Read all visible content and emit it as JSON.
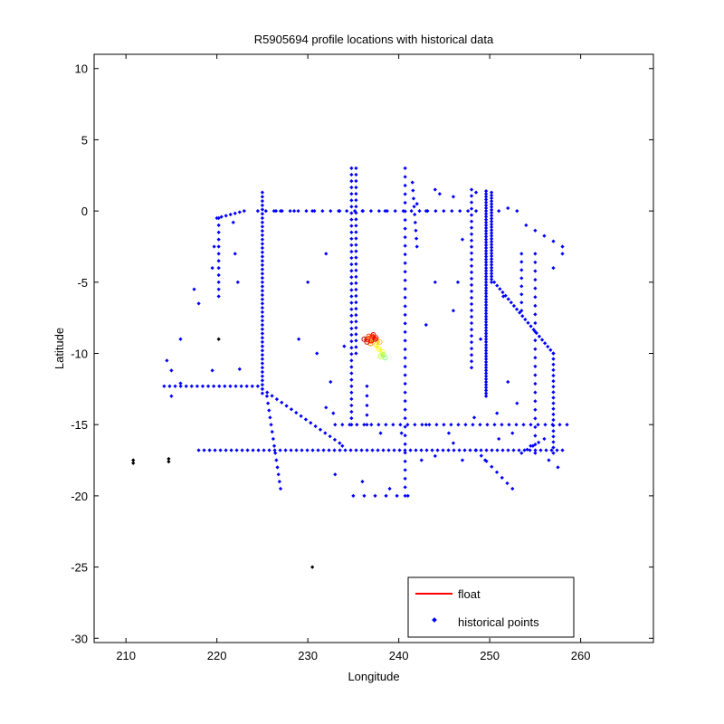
{
  "chart_data": {
    "type": "scatter",
    "title": "R5905694 profile locations with historical data",
    "xlabel": "Longitude",
    "ylabel": "Latitude",
    "xlim": [
      206.5,
      268
    ],
    "ylim": [
      -30.3,
      11
    ],
    "xticks": [
      210,
      220,
      230,
      240,
      250,
      260
    ],
    "yticks": [
      10,
      5,
      0,
      -5,
      -10,
      -15,
      -20,
      -25,
      -30
    ],
    "grid": false,
    "legend": {
      "placement": "bottom-right",
      "entries": [
        {
          "label": "float",
          "marker": "line",
          "color": "#ff0000"
        },
        {
          "label": "historical points",
          "marker": "dot",
          "color": "#0000ff"
        }
      ]
    },
    "series": [
      {
        "name": "historical points",
        "color": "#0000ff",
        "segments": [
          {
            "x1": 218,
            "y1": -16.8,
            "x2": 258,
            "y2": -16.8,
            "step": 0.6
          },
          {
            "x1": 233,
            "y1": -15,
            "x2": 258.5,
            "y2": -15,
            "step": 0.8
          },
          {
            "x1": 224.5,
            "y1": 0,
            "x2": 248.5,
            "y2": 0,
            "step": 0.9
          },
          {
            "x1": 225,
            "y1": 1.3,
            "x2": 225,
            "y2": -12.8,
            "step": 0.3
          },
          {
            "x1": 234.8,
            "y1": 3,
            "x2": 234.8,
            "y2": -15,
            "step": 0.45
          },
          {
            "x1": 235.3,
            "y1": 3,
            "x2": 235.3,
            "y2": -10,
            "step": 0.45
          },
          {
            "x1": 240.7,
            "y1": 3,
            "x2": 240.7,
            "y2": -20,
            "step": 0.6
          },
          {
            "x1": 248,
            "y1": 1.5,
            "x2": 248,
            "y2": -11,
            "step": 0.45
          },
          {
            "x1": 249.6,
            "y1": 1.4,
            "x2": 249.6,
            "y2": -13,
            "step": 0.2
          },
          {
            "x1": 250.2,
            "y1": 1.3,
            "x2": 250.2,
            "y2": -5,
            "step": 0.2
          },
          {
            "x1": 257,
            "y1": -10,
            "x2": 257,
            "y2": -17,
            "step": 0.4
          },
          {
            "x1": 255,
            "y1": -3,
            "x2": 255,
            "y2": -17,
            "step": 0.6
          },
          {
            "x1": 250.5,
            "y1": -5,
            "x2": 257,
            "y2": -10,
            "step": 0.4
          },
          {
            "x1": 220.2,
            "y1": -0.5,
            "x2": 220.2,
            "y2": -6,
            "step": 0.5
          },
          {
            "x1": 220,
            "y1": -0.5,
            "x2": 223,
            "y2": 0,
            "step": 0.5
          },
          {
            "x1": 214.2,
            "y1": -12.3,
            "x2": 224.5,
            "y2": -12.3,
            "step": 0.6
          },
          {
            "x1": 225,
            "y1": -12.5,
            "x2": 233.5,
            "y2": -16.3,
            "step": 0.6
          },
          {
            "x1": 225.5,
            "y1": -13,
            "x2": 227,
            "y2": -19.5,
            "step": 0.5
          },
          {
            "x1": 241,
            "y1": -20,
            "x2": 235,
            "y2": -20,
            "step": 1.2
          },
          {
            "x1": 253.5,
            "y1": -3,
            "x2": 253.5,
            "y2": -7,
            "step": 0.6
          },
          {
            "x1": 258,
            "y1": -2.5,
            "x2": 254,
            "y2": -1,
            "step": 1.0
          },
          {
            "x1": 241.5,
            "y1": 2,
            "x2": 242,
            "y2": -2.5,
            "step": 0.6
          },
          {
            "x1": 248.5,
            "y1": -16.8,
            "x2": 252.5,
            "y2": -19.5,
            "step": 0.7
          },
          {
            "x1": 253.5,
            "y1": -17,
            "x2": 256,
            "y2": -16,
            "step": 0.6
          },
          {
            "x1": 236.5,
            "y1": -12.3,
            "x2": 236.5,
            "y2": -15,
            "step": 0.6
          }
        ],
        "points": [
          [
            226.5,
            0
          ],
          [
            227,
            0
          ],
          [
            228.5,
            0
          ],
          [
            230.5,
            0
          ],
          [
            233.5,
            0
          ],
          [
            236,
            0
          ],
          [
            238.5,
            0
          ],
          [
            243,
            0
          ],
          [
            242,
            0.5
          ],
          [
            244,
            1.5
          ],
          [
            244.5,
            1.2
          ],
          [
            246,
            1
          ],
          [
            248.5,
            1.3
          ],
          [
            251,
            0
          ],
          [
            253,
            0
          ],
          [
            252,
            0.2
          ],
          [
            218,
            -6.5
          ],
          [
            217.5,
            -5.5
          ],
          [
            219.5,
            -4
          ],
          [
            219.7,
            -2.5
          ],
          [
            221.8,
            -0.8
          ],
          [
            222,
            -3
          ],
          [
            222.3,
            -5
          ],
          [
            216,
            -9
          ],
          [
            214.5,
            -10.5
          ],
          [
            215,
            -11.2
          ],
          [
            216,
            -12.1
          ],
          [
            219.5,
            -11.2
          ],
          [
            222.5,
            -11.1
          ],
          [
            215,
            -13
          ],
          [
            230,
            -5
          ],
          [
            229,
            -9
          ],
          [
            231,
            -10
          ],
          [
            232,
            -13.8
          ],
          [
            232.5,
            -12
          ],
          [
            232.8,
            -14.2
          ],
          [
            230.5,
            -25
          ],
          [
            220.2,
            -9
          ],
          [
            210.8,
            -17.5
          ],
          [
            210.8,
            -17.7
          ],
          [
            214.7,
            -17.4
          ],
          [
            214.7,
            -17.6
          ],
          [
            238,
            -15.6
          ],
          [
            240.3,
            -15.6
          ],
          [
            243,
            -15
          ],
          [
            244,
            -5
          ],
          [
            246,
            -7
          ],
          [
            243,
            -8
          ],
          [
            247,
            -2
          ],
          [
            249,
            -9
          ],
          [
            251.5,
            -6
          ],
          [
            252,
            -12
          ],
          [
            253,
            -13.5
          ],
          [
            251,
            -16
          ],
          [
            258,
            -3
          ],
          [
            257,
            -4
          ],
          [
            234,
            -9.5
          ],
          [
            233.8,
            -16.5
          ],
          [
            233,
            -18.5
          ],
          [
            236,
            -19
          ],
          [
            239,
            -19.5
          ],
          [
            242.5,
            -17.5
          ],
          [
            246,
            -16.3
          ],
          [
            247,
            -17.5
          ],
          [
            249.5,
            -17.5
          ],
          [
            256.5,
            -17.5
          ],
          [
            257.5,
            -18
          ],
          [
            244,
            -17.2
          ],
          [
            245.5,
            -15.6
          ],
          [
            232,
            -3
          ],
          [
            246.5,
            -5
          ],
          [
            248.3,
            -14.5
          ],
          [
            250.8,
            -14.2
          ],
          [
            252.5,
            -15.6
          ],
          [
            254.5,
            -16.5
          ]
        ]
      },
      {
        "name": "float",
        "color": "#ff0000",
        "track": [
          [
            238.5,
            -10.3
          ],
          [
            238.3,
            -10.1
          ],
          [
            238.0,
            -10.2
          ],
          [
            238.2,
            -9.9
          ],
          [
            237.8,
            -9.7
          ],
          [
            237.5,
            -9.4
          ],
          [
            237.9,
            -9.2
          ],
          [
            237.3,
            -9.0
          ],
          [
            236.9,
            -9.3
          ],
          [
            236.6,
            -9.0
          ],
          [
            237.1,
            -8.8
          ],
          [
            237.5,
            -8.9
          ],
          [
            237.0,
            -9.1
          ],
          [
            236.5,
            -9.2
          ],
          [
            236.2,
            -9.0
          ],
          [
            236.7,
            -8.8
          ],
          [
            237.2,
            -8.7
          ],
          [
            237.4,
            -9.0
          ]
        ],
        "track_colors": [
          "#80ff80",
          "#a0ff60",
          "#c0ff40",
          "#e0ff20",
          "#ffff00",
          "#ffe000",
          "#ffc000",
          "#ffa000",
          "#ff8000",
          "#ff6000",
          "#ff4000",
          "#ff2000",
          "#ff0000",
          "#e00000",
          "#c00000",
          "#ff4000",
          "#ff0000",
          "#d00000"
        ]
      }
    ]
  }
}
